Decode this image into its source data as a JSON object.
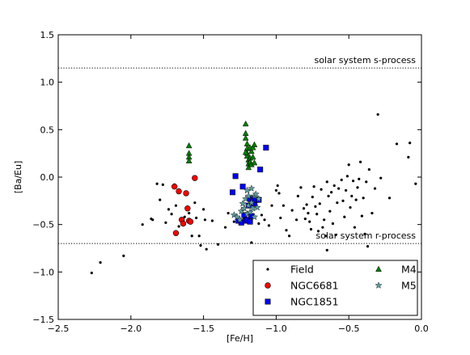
{
  "chart_data": {
    "type": "scatter",
    "xlabel": "[Fe/H]",
    "ylabel": "[Ba/Eu]",
    "xlim": [
      -2.5,
      0.0
    ],
    "ylim": [
      -1.5,
      1.5
    ],
    "xticks": [
      "−2.5",
      "−2.0",
      "−1.5",
      "−1.0",
      "−0.5",
      "0.0"
    ],
    "xtick_values": [
      -2.5,
      -2.0,
      -1.5,
      -1.0,
      -0.5,
      0.0
    ],
    "yticks": [
      "−1.5",
      "−1.0",
      "−0.5",
      "0.0",
      "0.5",
      "1.0",
      "1.5"
    ],
    "ytick_values": [
      -1.5,
      -1.0,
      -0.5,
      0.0,
      0.5,
      1.0,
      1.5
    ],
    "grid": false,
    "legend_position": "lower-right",
    "reference_lines": [
      {
        "label": "solar system s-process",
        "y": 1.15
      },
      {
        "label": "solar system r-process",
        "y": -0.7
      }
    ],
    "series": [
      {
        "name": "Field",
        "marker": "dot",
        "color": "#000000",
        "points": [
          [
            -2.27,
            -1.01
          ],
          [
            -2.21,
            -0.9
          ],
          [
            -2.05,
            -0.83
          ],
          [
            -1.92,
            -0.5
          ],
          [
            -1.86,
            -0.44
          ],
          [
            -1.85,
            -0.45
          ],
          [
            -1.82,
            -0.07
          ],
          [
            -1.8,
            -0.24
          ],
          [
            -1.78,
            -0.08
          ],
          [
            -1.76,
            -0.48
          ],
          [
            -1.74,
            -0.34
          ],
          [
            -1.72,
            -0.39
          ],
          [
            -1.7,
            -0.08
          ],
          [
            -1.69,
            -0.3
          ],
          [
            -1.67,
            -0.52
          ],
          [
            -1.63,
            -0.42
          ],
          [
            -1.6,
            -0.38
          ],
          [
            -1.58,
            -0.62
          ],
          [
            -1.56,
            -0.27
          ],
          [
            -1.55,
            -0.43
          ],
          [
            -1.53,
            -0.62
          ],
          [
            -1.52,
            -0.72
          ],
          [
            -1.5,
            -0.34
          ],
          [
            -1.49,
            -0.45
          ],
          [
            -1.48,
            -0.76
          ],
          [
            -1.44,
            -0.46
          ],
          [
            -1.4,
            -0.71
          ],
          [
            -1.35,
            -0.53
          ],
          [
            -1.33,
            -0.38
          ],
          [
            -1.29,
            -0.47
          ],
          [
            -1.24,
            -0.45
          ],
          [
            -1.21,
            -0.45
          ],
          [
            -1.19,
            -0.46
          ],
          [
            -1.17,
            -0.69
          ],
          [
            -1.12,
            -0.49
          ],
          [
            -1.1,
            -0.4
          ],
          [
            -1.08,
            -0.45
          ],
          [
            -1.05,
            -0.51
          ],
          [
            -1.03,
            -0.3
          ],
          [
            -1.0,
            -0.14
          ],
          [
            -0.99,
            -0.09
          ],
          [
            -0.98,
            -0.17
          ],
          [
            -0.97,
            -0.43
          ],
          [
            -0.95,
            -0.3
          ],
          [
            -0.93,
            -0.56
          ],
          [
            -0.91,
            -0.62
          ],
          [
            -0.89,
            -0.35
          ],
          [
            -0.86,
            -0.45
          ],
          [
            -0.85,
            -0.2
          ],
          [
            -0.83,
            -0.11
          ],
          [
            -0.81,
            -0.33
          ],
          [
            -0.8,
            -0.44
          ],
          [
            -0.79,
            -0.29
          ],
          [
            -0.78,
            -0.38
          ],
          [
            -0.77,
            -0.47
          ],
          [
            -0.76,
            -0.55
          ],
          [
            -0.75,
            -0.21
          ],
          [
            -0.74,
            -0.1
          ],
          [
            -0.73,
            -0.31
          ],
          [
            -0.72,
            -0.39
          ],
          [
            -0.71,
            -0.57
          ],
          [
            -0.7,
            -0.28
          ],
          [
            -0.69,
            -0.13
          ],
          [
            -0.68,
            -0.53
          ],
          [
            -0.67,
            -0.45
          ],
          [
            -0.66,
            -0.62
          ],
          [
            -0.65,
            -0.05
          ],
          [
            -0.64,
            -0.2
          ],
          [
            -0.63,
            -0.36
          ],
          [
            -0.62,
            -0.16
          ],
          [
            -0.61,
            -0.49
          ],
          [
            -0.6,
            -0.09
          ],
          [
            -0.59,
            -0.61
          ],
          [
            -0.58,
            -0.27
          ],
          [
            -0.57,
            -0.12
          ],
          [
            -0.55,
            -0.03
          ],
          [
            -0.54,
            -0.25
          ],
          [
            -0.53,
            -0.42
          ],
          [
            -0.52,
            -0.14
          ],
          [
            -0.51,
            0.01
          ],
          [
            -0.5,
            0.13
          ],
          [
            -0.49,
            -0.32
          ],
          [
            -0.48,
            -0.2
          ],
          [
            -0.47,
            -0.04
          ],
          [
            -0.46,
            -0.53
          ],
          [
            -0.45,
            -0.24
          ],
          [
            -0.44,
            -0.11
          ],
          [
            -0.43,
            -0.02
          ],
          [
            -0.42,
            0.16
          ],
          [
            -0.41,
            -0.41
          ],
          [
            -0.4,
            -0.22
          ],
          [
            -0.39,
            -0.6
          ],
          [
            -0.38,
            -0.05
          ],
          [
            -0.37,
            -0.73
          ],
          [
            -0.36,
            0.08
          ],
          [
            -0.34,
            -0.38
          ],
          [
            -0.32,
            -0.12
          ],
          [
            -0.3,
            0.66
          ],
          [
            -0.28,
            -0.01
          ],
          [
            -0.22,
            -0.22
          ],
          [
            -0.17,
            0.35
          ],
          [
            -0.09,
            0.21
          ],
          [
            -0.08,
            0.36
          ],
          [
            -0.04,
            -0.07
          ],
          [
            -0.65,
            -0.77
          ]
        ]
      },
      {
        "name": "NGC6681",
        "marker": "circle",
        "color": "#ff0000",
        "points": [
          [
            -1.7,
            -0.1
          ],
          [
            -1.69,
            -0.59
          ],
          [
            -1.67,
            -0.15
          ],
          [
            -1.65,
            -0.45
          ],
          [
            -1.64,
            -0.49
          ],
          [
            -1.62,
            -0.17
          ],
          [
            -1.61,
            -0.33
          ],
          [
            -1.6,
            -0.46
          ],
          [
            -1.59,
            -0.47
          ],
          [
            -1.56,
            -0.01
          ]
        ]
      },
      {
        "name": "NGC1851",
        "marker": "square",
        "color": "#0000ff",
        "points": [
          [
            -1.3,
            -0.16
          ],
          [
            -1.28,
            0.01
          ],
          [
            -1.26,
            -0.46
          ],
          [
            -1.24,
            -0.48
          ],
          [
            -1.23,
            -0.1
          ],
          [
            -1.22,
            -0.4
          ],
          [
            -1.21,
            -0.46
          ],
          [
            -1.2,
            -0.45
          ],
          [
            -1.19,
            -0.3
          ],
          [
            -1.18,
            -0.23
          ],
          [
            -1.18,
            -0.47
          ],
          [
            -1.17,
            -0.41
          ],
          [
            -1.16,
            -0.24
          ],
          [
            -1.15,
            -0.28
          ],
          [
            -1.14,
            -0.24
          ],
          [
            -1.12,
            -0.24
          ],
          [
            -1.11,
            0.08
          ],
          [
            -1.07,
            0.31
          ]
        ]
      },
      {
        "name": "M4",
        "marker": "triangle",
        "color": "#007f00",
        "points": [
          [
            -1.6,
            0.33
          ],
          [
            -1.6,
            0.25
          ],
          [
            -1.6,
            0.21
          ],
          [
            -1.6,
            0.17
          ],
          [
            -1.21,
            0.56
          ],
          [
            -1.21,
            0.46
          ],
          [
            -1.21,
            0.41
          ],
          [
            -1.2,
            0.35
          ],
          [
            -1.2,
            0.3
          ],
          [
            -1.2,
            0.25
          ],
          [
            -1.2,
            0.22
          ],
          [
            -1.19,
            0.18
          ],
          [
            -1.19,
            0.14
          ],
          [
            -1.19,
            0.1
          ],
          [
            -1.18,
            0.31
          ],
          [
            -1.18,
            0.2
          ],
          [
            -1.18,
            0.16
          ],
          [
            -1.17,
            0.27
          ],
          [
            -1.17,
            0.13
          ],
          [
            -1.16,
            0.31
          ],
          [
            -1.16,
            0.21
          ],
          [
            -1.15,
            0.34
          ],
          [
            -1.15,
            0.15
          ],
          [
            -1.21,
            0.26
          ]
        ]
      },
      {
        "name": "M5",
        "marker": "star",
        "color": "#5f9ea0",
        "points": [
          [
            -1.29,
            -0.4
          ],
          [
            -1.27,
            -0.42
          ],
          [
            -1.25,
            -0.45
          ],
          [
            -1.24,
            -0.36
          ],
          [
            -1.23,
            -0.28
          ],
          [
            -1.22,
            -0.33
          ],
          [
            -1.21,
            -0.23
          ],
          [
            -1.2,
            -0.14
          ],
          [
            -1.2,
            -0.39
          ],
          [
            -1.19,
            -0.3
          ],
          [
            -1.19,
            -0.2
          ],
          [
            -1.18,
            -0.37
          ],
          [
            -1.17,
            -0.12
          ],
          [
            -1.17,
            -0.27
          ],
          [
            -1.16,
            -0.33
          ],
          [
            -1.15,
            -0.2
          ],
          [
            -1.15,
            -0.42
          ],
          [
            -1.14,
            -0.18
          ],
          [
            -1.13,
            -0.32
          ],
          [
            -1.12,
            -0.23
          ]
        ]
      }
    ],
    "legend_order": [
      "Field",
      "M4",
      "NGC6681",
      "M5",
      "NGC1851"
    ]
  }
}
